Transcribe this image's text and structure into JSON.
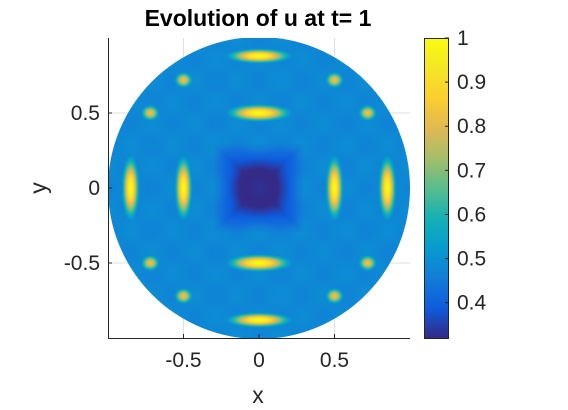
{
  "chart_data": {
    "type": "heatmap",
    "title": "Evolution of u at t= 1",
    "xlabel": "x",
    "ylabel": "y",
    "xlim": [
      -1,
      1
    ],
    "ylim": [
      -1,
      1
    ],
    "xticks": [
      -0.5,
      0,
      0.5
    ],
    "yticks": [
      -0.5,
      0,
      0.5
    ],
    "xtick_labels": [
      "-0.5",
      "0",
      "0.5"
    ],
    "ytick_labels": [
      "-0.5",
      "0",
      "0.5"
    ],
    "domain_shape": "unit disk",
    "grid": true,
    "colormap": "parula",
    "colorbar": {
      "location": "right",
      "clim": [
        0.32,
        1.0
      ],
      "ticks": [
        0.4,
        0.5,
        0.6,
        0.7,
        0.8,
        0.9,
        1.0
      ],
      "tick_labels": [
        "0.4",
        "0.5",
        "0.6",
        "0.7",
        "0.8",
        "0.9",
        "1"
      ]
    },
    "field": {
      "description_value_min": 0.32,
      "value_max": 1.0,
      "peak_x_positions": [
        -0.85,
        -0.5,
        0.5,
        0.85
      ],
      "peak_y_positions": [
        -0.88,
        -0.72,
        -0.5,
        0.5,
        0.72,
        0.88
      ]
    }
  },
  "colors": {
    "parula_low": "#352a87",
    "parula_mid": "#16c3b5",
    "parula_high": "#f9fb0e"
  }
}
